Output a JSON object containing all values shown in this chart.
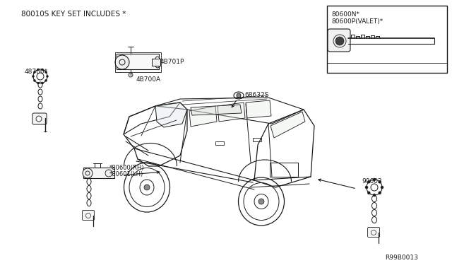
{
  "bg_color": "#ffffff",
  "line_color": "#1a1a1a",
  "text_color": "#1a1a1a",
  "figsize": [
    6.4,
    3.72
  ],
  "dpi": 100,
  "labels": {
    "title": "80010S KEY SET INCLUDES *",
    "part_48700": "48700*",
    "part_4B701P": "4B701P",
    "part_4B700A": "4B700A",
    "part_68632S": "68632S",
    "part_80600N": "80600N*",
    "part_80600P": "80600P(VALET)*",
    "part_80600RH": "*80600(RH)",
    "part_80601LH": "*80601(LH)",
    "part_90602": "90602",
    "watermark": "R99B0013"
  }
}
